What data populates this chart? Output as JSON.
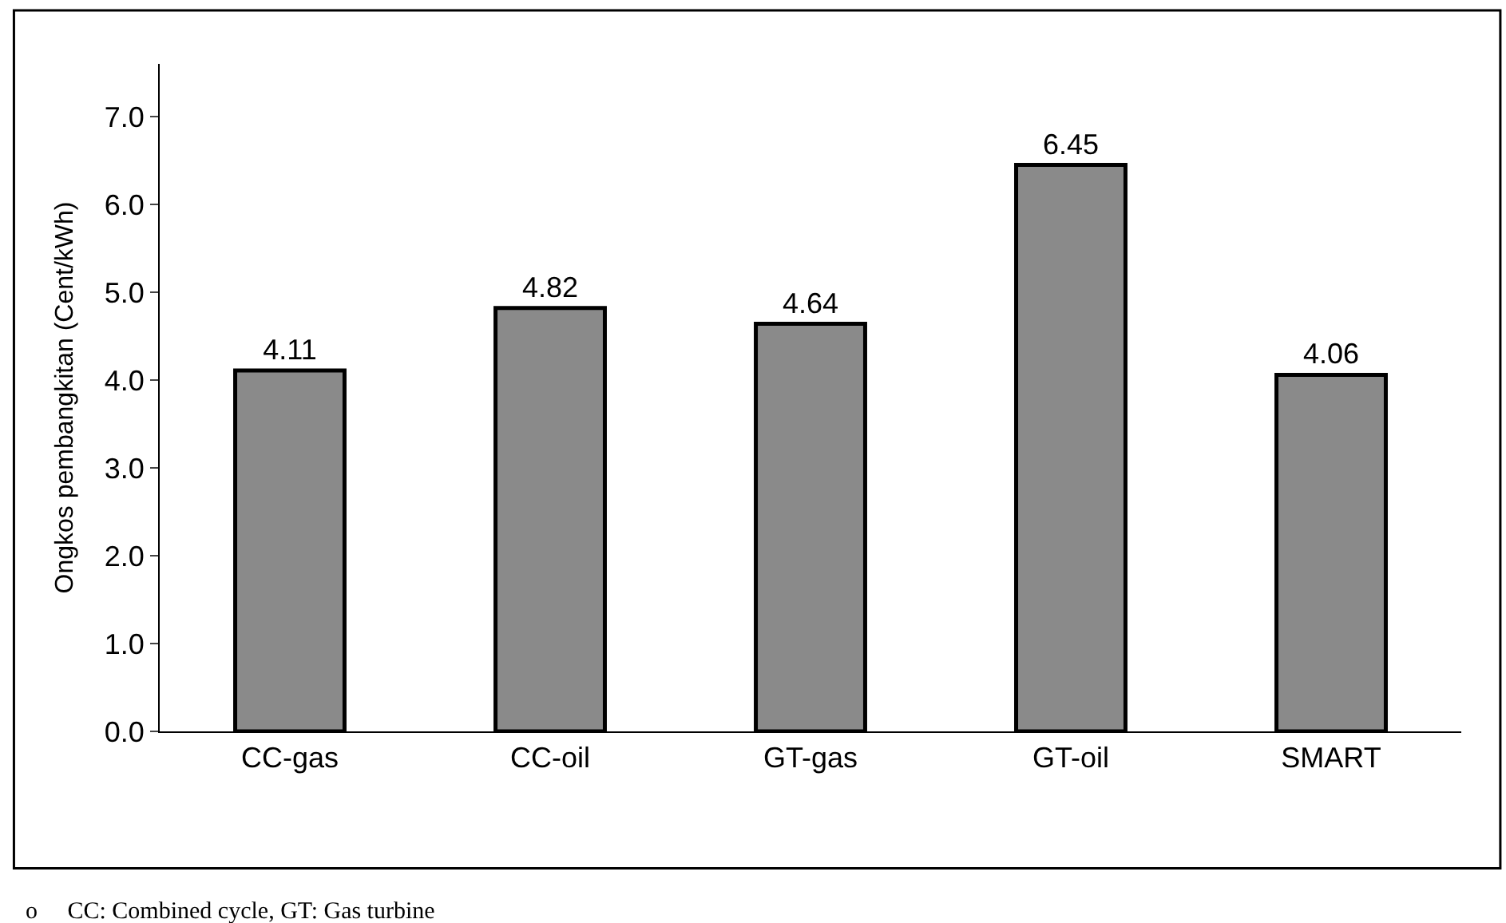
{
  "chart_data": {
    "type": "bar",
    "ylabel": "Ongkos pembangkitan (Cent/kWh)",
    "categories": [
      "CC-gas",
      "CC-oil",
      "GT-gas",
      "GT-oil",
      "SMART"
    ],
    "values": [
      4.11,
      4.82,
      4.64,
      6.45,
      4.06
    ],
    "color": "#8a8a8a",
    "data_labels": true,
    "ylim": [
      0,
      7.6
    ],
    "yticks": [
      {
        "value": 0,
        "label": "0.0"
      },
      {
        "value": 1,
        "label": "1.0"
      },
      {
        "value": 2,
        "label": "2.0"
      },
      {
        "value": 3,
        "label": "3.0"
      },
      {
        "value": 4,
        "label": "4.0"
      },
      {
        "value": 5,
        "label": "5.0"
      },
      {
        "value": 6,
        "label": "6.0"
      },
      {
        "value": 7,
        "label": "7.0"
      }
    ],
    "annotations": [
      "o     CC: Combined cycle, GT: Gas turbine"
    ]
  }
}
